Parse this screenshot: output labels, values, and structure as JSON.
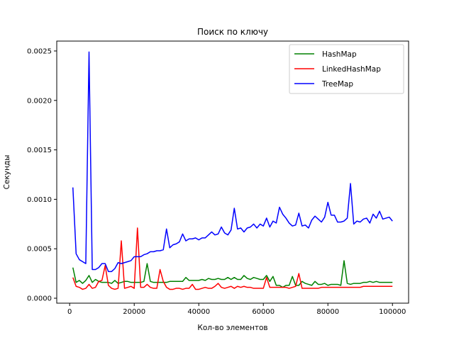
{
  "chart_data": {
    "type": "line",
    "title": "Поиск по ключу",
    "xlabel": "Кол-во элементов",
    "ylabel": "Секунды",
    "xlim": [
      -4000,
      105000
    ],
    "ylim": [
      -5e-05,
      0.0026
    ],
    "xticks": [
      {
        "value": 0,
        "label": "0"
      },
      {
        "value": 20000,
        "label": "20000"
      },
      {
        "value": 40000,
        "label": "40000"
      },
      {
        "value": 60000,
        "label": "60000"
      },
      {
        "value": 80000,
        "label": "80000"
      },
      {
        "value": 100000,
        "label": "100000"
      }
    ],
    "yticks": [
      {
        "value": 0,
        "label": "0.0000"
      },
      {
        "value": 0.0005,
        "label": "0.0005"
      },
      {
        "value": 0.001,
        "label": "0.0010"
      },
      {
        "value": 0.0015,
        "label": "0.0015"
      },
      {
        "value": 0.002,
        "label": "0.0020"
      },
      {
        "value": 0.0025,
        "label": "0.0025"
      }
    ],
    "grid": false,
    "legend_position": "top-right",
    "x": [
      1000,
      2000,
      3000,
      4000,
      5000,
      6000,
      7000,
      8000,
      9000,
      10000,
      11000,
      12000,
      13000,
      14000,
      15000,
      16000,
      17000,
      18000,
      19000,
      20000,
      21000,
      22000,
      23000,
      24000,
      25000,
      26000,
      27000,
      28000,
      29000,
      30000,
      31000,
      32000,
      33000,
      34000,
      35000,
      36000,
      37000,
      38000,
      39000,
      40000,
      41000,
      42000,
      43000,
      44000,
      45000,
      46000,
      47000,
      48000,
      49000,
      50000,
      51000,
      52000,
      53000,
      54000,
      55000,
      56000,
      57000,
      58000,
      59000,
      60000,
      61000,
      62000,
      63000,
      64000,
      65000,
      66000,
      67000,
      68000,
      69000,
      70000,
      71000,
      72000,
      73000,
      74000,
      75000,
      76000,
      77000,
      78000,
      79000,
      80000,
      81000,
      82000,
      83000,
      84000,
      85000,
      86000,
      87000,
      88000,
      89000,
      90000,
      91000,
      92000,
      93000,
      94000,
      95000,
      96000,
      97000,
      98000,
      99000,
      100000
    ],
    "series": [
      {
        "name": "HashMap",
        "color": "#008000",
        "values": [
          0.00031,
          0.00016,
          0.00018,
          0.00015,
          0.00018,
          0.00023,
          0.00016,
          0.00019,
          0.00017,
          0.00016,
          0.00016,
          0.00016,
          0.00015,
          0.00018,
          0.00015,
          0.00016,
          0.00017,
          0.00017,
          0.00016,
          0.00016,
          0.00016,
          0.00016,
          0.00017,
          0.00035,
          0.00017,
          0.00016,
          0.00016,
          0.00016,
          0.00016,
          0.00016,
          0.00017,
          0.00017,
          0.00017,
          0.00017,
          0.00017,
          0.00021,
          0.00018,
          0.00018,
          0.00018,
          0.00018,
          0.00019,
          0.00018,
          0.0002,
          0.00019,
          0.00019,
          0.0002,
          0.00019,
          0.00019,
          0.00021,
          0.00019,
          0.00021,
          0.00019,
          0.00019,
          0.00023,
          0.0002,
          0.00019,
          0.00021,
          0.0002,
          0.00019,
          0.00019,
          0.00023,
          0.00017,
          0.00022,
          0.00013,
          0.00013,
          0.00011,
          0.00013,
          0.00013,
          0.00022,
          0.00013,
          0.00013,
          0.00017,
          0.00015,
          0.00014,
          0.00013,
          0.00017,
          0.00014,
          0.00014,
          0.00015,
          0.00013,
          0.00014,
          0.00014,
          0.00014,
          0.00013,
          0.00038,
          0.00015,
          0.00014,
          0.00015,
          0.00015,
          0.00015,
          0.00016,
          0.00016,
          0.00017,
          0.00016,
          0.00017,
          0.00016,
          0.00016,
          0.00016,
          0.00016,
          0.00016
        ]
      },
      {
        "name": "LinkedHashMap",
        "color": "#ff0000",
        "values": [
          0.00021,
          0.00012,
          0.00011,
          9e-05,
          0.0001,
          0.00014,
          0.0001,
          0.00011,
          0.00017,
          0.00018,
          0.00033,
          0.00013,
          0.0001,
          9e-05,
          0.0001,
          0.00058,
          0.0001,
          0.00011,
          0.00012,
          0.0001,
          0.00071,
          0.00011,
          0.00011,
          0.00014,
          0.00011,
          0.0001,
          0.0001,
          0.00029,
          0.00017,
          0.00011,
          9e-05,
          9e-05,
          0.0001,
          0.0001,
          9e-05,
          0.0001,
          0.0001,
          0.00014,
          9e-05,
          9e-05,
          0.0001,
          0.00011,
          0.0001,
          0.0001,
          0.00012,
          0.00015,
          0.00011,
          0.0001,
          0.00011,
          0.00012,
          0.0001,
          0.00012,
          0.00011,
          0.00012,
          0.00011,
          0.00011,
          0.0001,
          0.0001,
          0.0001,
          0.0001,
          0.00021,
          0.00011,
          0.00011,
          0.00011,
          0.00011,
          0.00011,
          0.00011,
          0.0001,
          0.00011,
          0.00012,
          0.00025,
          0.0001,
          0.0001,
          0.0001,
          0.0001,
          0.0001,
          0.0001,
          0.00011,
          0.00011,
          0.00011,
          0.00011,
          0.00011,
          0.00011,
          0.00011,
          0.00011,
          0.00011,
          0.00011,
          0.00011,
          0.00011,
          0.00011,
          0.00012,
          0.00012,
          0.00012,
          0.00012,
          0.00012,
          0.00012,
          0.00012,
          0.00012,
          0.00012,
          0.00012
        ]
      },
      {
        "name": "TreeMap",
        "color": "#0000ff",
        "values": [
          0.00112,
          0.00045,
          0.00039,
          0.00037,
          0.00035,
          0.00249,
          0.00029,
          0.00029,
          0.00031,
          0.00035,
          0.00035,
          0.00027,
          0.00027,
          0.0003,
          0.00036,
          0.00035,
          0.00036,
          0.00037,
          0.00038,
          0.00042,
          0.00042,
          0.00042,
          0.00044,
          0.00045,
          0.00047,
          0.00047,
          0.00048,
          0.00048,
          0.00049,
          0.0007,
          0.00051,
          0.00054,
          0.00055,
          0.00057,
          0.00065,
          0.00058,
          0.0006,
          0.0006,
          0.00061,
          0.00059,
          0.00061,
          0.00061,
          0.00064,
          0.00067,
          0.00064,
          0.00065,
          0.00072,
          0.00066,
          0.00064,
          0.00069,
          0.00091,
          0.0007,
          0.00071,
          0.00067,
          0.00071,
          0.00072,
          0.00075,
          0.00071,
          0.00075,
          0.00073,
          0.00081,
          0.00072,
          0.00078,
          0.00076,
          0.00092,
          0.00085,
          0.00081,
          0.00076,
          0.00073,
          0.00074,
          0.00086,
          0.00073,
          0.00074,
          0.00071,
          0.00079,
          0.00083,
          0.0008,
          0.00077,
          0.00082,
          0.00097,
          0.00084,
          0.00084,
          0.00077,
          0.00077,
          0.00078,
          0.00081,
          0.00116,
          0.00075,
          0.00078,
          0.00077,
          0.0008,
          0.00081,
          0.00076,
          0.00085,
          0.00081,
          0.00088,
          0.0008,
          0.00081,
          0.00082,
          0.00078
        ]
      }
    ]
  }
}
